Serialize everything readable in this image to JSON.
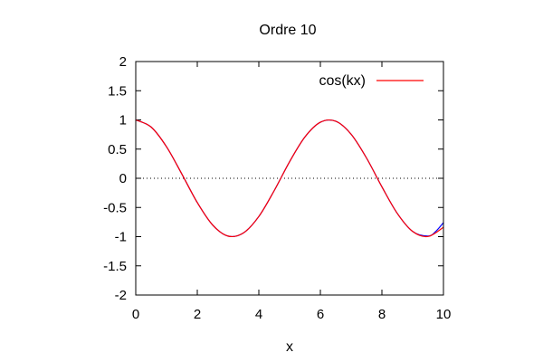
{
  "chart_data": {
    "type": "line",
    "title": "Ordre 10",
    "xlabel": "x",
    "ylabel": "",
    "xlim": [
      0,
      10
    ],
    "ylim": [
      -2,
      2
    ],
    "xticks": [
      "0",
      "2",
      "4",
      "6",
      "8",
      "10"
    ],
    "xtick_values": [
      0,
      2,
      4,
      6,
      8,
      10
    ],
    "yticks": [
      "2",
      "1.5",
      "1",
      "0.5",
      "0",
      "-0.5",
      "-1",
      "-1.5",
      "-2"
    ],
    "ytick_values": [
      2,
      1.5,
      1,
      0.5,
      0,
      -0.5,
      -1,
      -1.5,
      -2
    ],
    "grid": false,
    "zero_line": true,
    "legend_position": "top-right",
    "series": [
      {
        "name": "cos(kx)",
        "color": "#ff0000",
        "x": [
          0,
          0.5,
          1,
          1.5,
          2,
          2.5,
          3,
          3.5,
          4,
          4.5,
          5,
          5.5,
          6,
          6.5,
          7,
          7.5,
          8,
          8.5,
          9,
          9.5,
          10
        ],
        "y": [
          1,
          0.878,
          0.54,
          0.071,
          -0.416,
          -0.801,
          -0.99,
          -0.936,
          -0.654,
          -0.211,
          0.284,
          0.709,
          0.96,
          0.977,
          0.754,
          0.347,
          -0.146,
          -0.602,
          -0.911,
          -0.997,
          -0.839
        ]
      },
      {
        "name": "",
        "color": "#0000ff",
        "x": [
          0,
          0.5,
          1,
          1.5,
          2,
          2.5,
          3,
          3.5,
          4,
          4.5,
          5,
          5.5,
          6,
          6.5,
          7,
          7.5,
          8,
          8.5,
          9,
          9.5,
          9.75,
          10
        ],
        "y": [
          1,
          0.878,
          0.54,
          0.071,
          -0.416,
          -0.801,
          -0.99,
          -0.936,
          -0.654,
          -0.211,
          0.284,
          0.709,
          0.96,
          0.977,
          0.754,
          0.347,
          -0.146,
          -0.602,
          -0.911,
          -0.99,
          -0.91,
          -0.76
        ]
      }
    ]
  }
}
